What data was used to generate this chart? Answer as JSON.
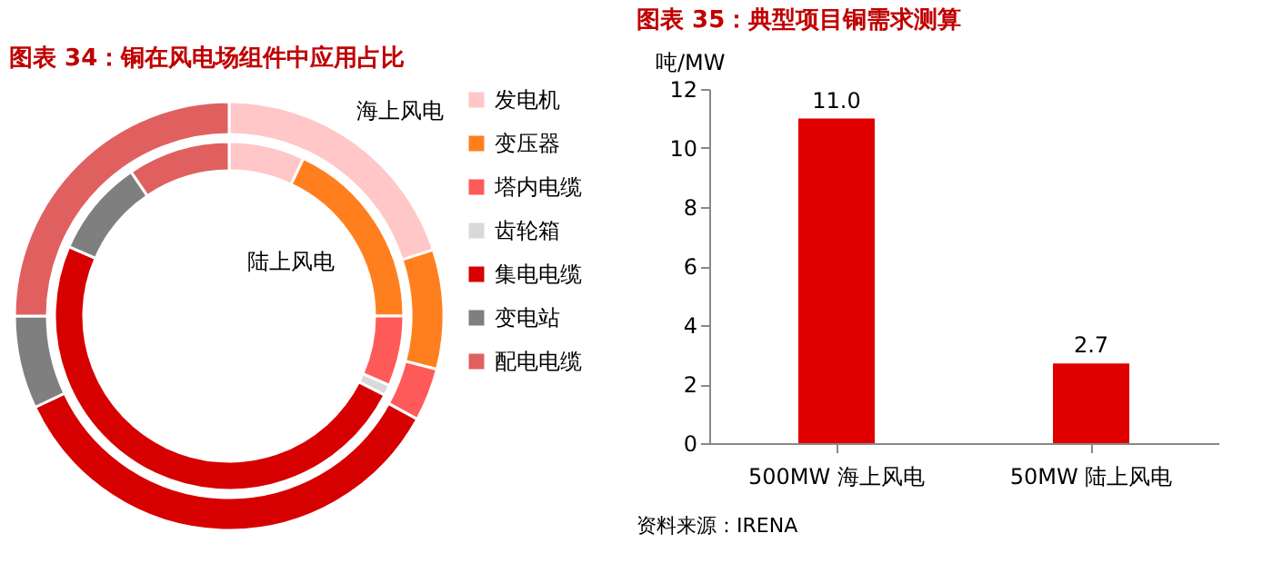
{
  "chart_data": [
    {
      "type": "donut",
      "title": "图表 34：铜在风电场组件中应用占比",
      "categories": [
        "发电机",
        "变压器",
        "塔内电缆",
        "齿轮箱",
        "集电电缆",
        "变电站",
        "配电电缆"
      ],
      "colors": [
        "#ffc7c7",
        "#ff7f1e",
        "#ff5a5a",
        "#d9d9d9",
        "#d60000",
        "#7f7f7f",
        "#e06060"
      ],
      "series": [
        {
          "name": "海上风电",
          "values": [
            20,
            9,
            4,
            0,
            35,
            7,
            25
          ]
        },
        {
          "name": "陆上风电",
          "values": [
            7,
            18,
            6.5,
            1,
            49,
            9,
            9.5
          ]
        }
      ],
      "legend": "right"
    },
    {
      "type": "bar",
      "title": "图表 35：典型项目铜需求测算",
      "ylabel": "吨/MW",
      "categories": [
        "500MW 海上风电",
        "50MW 陆上风电"
      ],
      "values": [
        11.0,
        2.7
      ],
      "value_labels": [
        "11.0",
        "2.7"
      ],
      "color": "#e00000",
      "ylim": [
        0,
        12
      ],
      "yticks": [
        0,
        2,
        4,
        6,
        8,
        10,
        12
      ],
      "grid": false,
      "annotations": [
        "资料来源：IRENA"
      ]
    }
  ]
}
